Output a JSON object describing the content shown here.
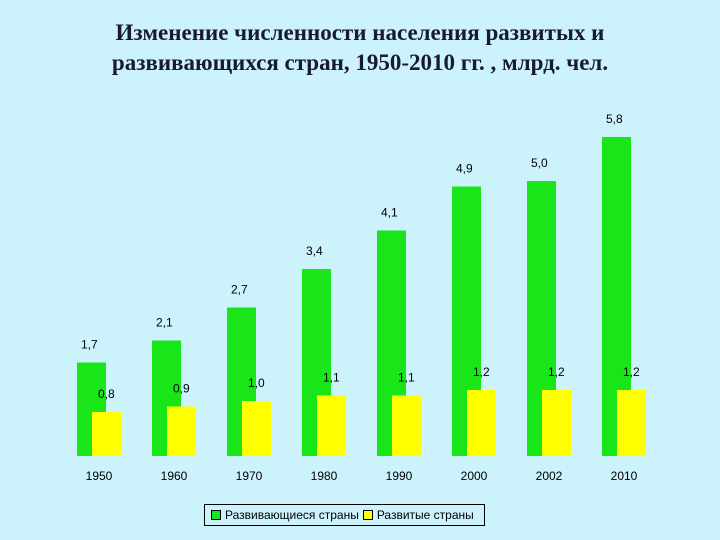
{
  "title": {
    "line1": "Изменение численности населения развитых и",
    "line2": "развивающихся стран, 1950-2010 гг. , млрд. чел."
  },
  "chart_data": {
    "type": "bar",
    "categories": [
      "1950",
      "1960",
      "1970",
      "1980",
      "1990",
      "2000",
      "2002",
      "2010"
    ],
    "series": [
      {
        "name": "Развивающиеся страны",
        "values": [
          1.7,
          2.1,
          2.7,
          3.4,
          4.1,
          4.9,
          5.0,
          5.8
        ],
        "labels": [
          "1,7",
          "2,1",
          "2,7",
          "3,4",
          "4,1",
          "4,9",
          "5,0",
          "5,8"
        ],
        "color": "#19e619"
      },
      {
        "name": "Развитые страны",
        "values": [
          0.8,
          0.9,
          1.0,
          1.1,
          1.1,
          1.2,
          1.2,
          1.2
        ],
        "labels": [
          "0,8",
          "0,9",
          "1,0",
          "1,1",
          "1,1",
          "1,2",
          "1,2",
          "1,2"
        ],
        "color": "#ffff00"
      }
    ],
    "legend_position": "bottom",
    "grid": false
  }
}
